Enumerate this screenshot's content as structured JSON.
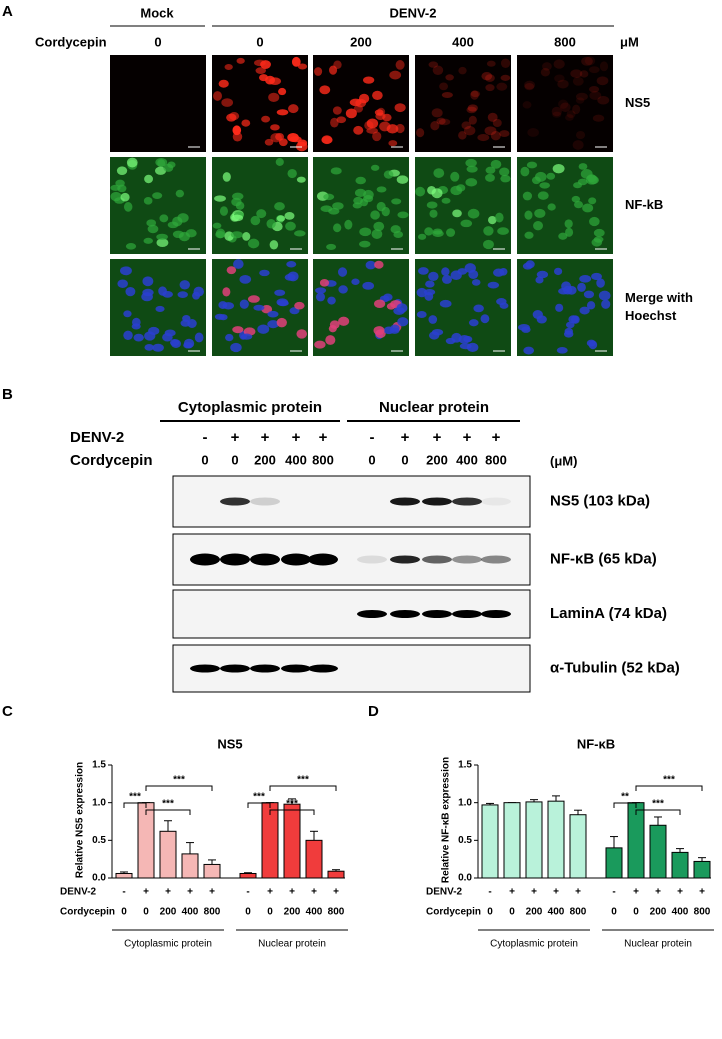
{
  "panel_a": {
    "letter": "A",
    "groups": [
      "Mock",
      "DENV-2"
    ],
    "treatment_label": "Cordycepin",
    "doses": [
      "0",
      "0",
      "200",
      "400",
      "800"
    ],
    "unit": "μM",
    "rows": [
      [
        "NS5"
      ],
      [
        "NF-kB"
      ],
      [
        "Merge with",
        "Hoechst"
      ]
    ]
  },
  "panel_b": {
    "letter": "B",
    "groups": [
      "Cytoplasmic protein",
      "Nuclear protein"
    ],
    "infection_label": "DENV-2",
    "infection": [
      "-",
      "+",
      "+",
      "+",
      "+",
      "-",
      "+",
      "+",
      "+",
      "+"
    ],
    "treatment_label": "Cordycepin",
    "doses": [
      "0",
      "0",
      "200",
      "400",
      "800",
      "0",
      "0",
      "200",
      "400",
      "800"
    ],
    "unit": "(μM)",
    "blots": [
      "NS5 (103 kDa)",
      "NF-κB (65 kDa)",
      "LaminA (74 kDa)",
      "α-Tubulin (52 kDa)"
    ]
  },
  "chart_data": [
    {
      "panel": "C",
      "type": "bar",
      "title": "NS5",
      "y_label": "Relative NS5 expression",
      "ylim": [
        0,
        1.5
      ],
      "yticks": [
        {
          "value": 0,
          "label": "0.0"
        },
        0.5,
        {
          "value": 1,
          "label": "1.0"
        },
        1.5
      ],
      "infection_label": "DENV-2",
      "infection": [
        "-",
        "+",
        "+",
        "+",
        "+",
        "-",
        "+",
        "+",
        "+",
        "+"
      ],
      "treatment_label": "Cordycepin",
      "doses": [
        "0",
        "0",
        "200",
        "400",
        "800",
        "0",
        "0",
        "200",
        "400",
        "800"
      ],
      "series": [
        {
          "name": "Cytoplasmic protein",
          "color": "#f5b7b5",
          "values": [
            0.06,
            1.0,
            0.62,
            0.32,
            0.18
          ],
          "errors": [
            0.02,
            0,
            0.14,
            0.15,
            0.06
          ],
          "significance": [
            "***",
            "***",
            "***"
          ]
        },
        {
          "name": "Nuclear protein",
          "color": "#f03c3c",
          "values": [
            0.06,
            1.0,
            0.98,
            0.5,
            0.09
          ],
          "errors": [
            0.01,
            0,
            0.07,
            0.12,
            0.02
          ],
          "significance": [
            "***",
            "***",
            "***"
          ]
        }
      ]
    },
    {
      "panel": "D",
      "type": "bar",
      "title": "NF-κB",
      "y_label": "Relative NF-κB expression",
      "ylim": [
        0,
        1.5
      ],
      "yticks": [
        {
          "value": 0,
          "label": "0.0"
        },
        0.5,
        {
          "value": 1,
          "label": "1.0"
        },
        1.5
      ],
      "infection_label": "DENV-2",
      "infection": [
        "-",
        "+",
        "+",
        "+",
        "+",
        "-",
        "+",
        "+",
        "+",
        "+"
      ],
      "treatment_label": "Cordycepin",
      "doses": [
        "0",
        "0",
        "200",
        "400",
        "800",
        "0",
        "0",
        "200",
        "400",
        "800"
      ],
      "series": [
        {
          "name": "Cytoplasmic protein",
          "color": "#b9f2da",
          "values": [
            0.97,
            1.0,
            1.01,
            1.02,
            0.84
          ],
          "errors": [
            0.02,
            0,
            0.03,
            0.07,
            0.06
          ]
        },
        {
          "name": "Nuclear protein",
          "color": "#1a9a5c",
          "values": [
            0.4,
            1.0,
            0.7,
            0.34,
            0.22
          ],
          "errors": [
            0.15,
            0,
            0.11,
            0.05,
            0.05
          ],
          "significance": [
            "**",
            "***",
            "***"
          ]
        }
      ]
    }
  ]
}
